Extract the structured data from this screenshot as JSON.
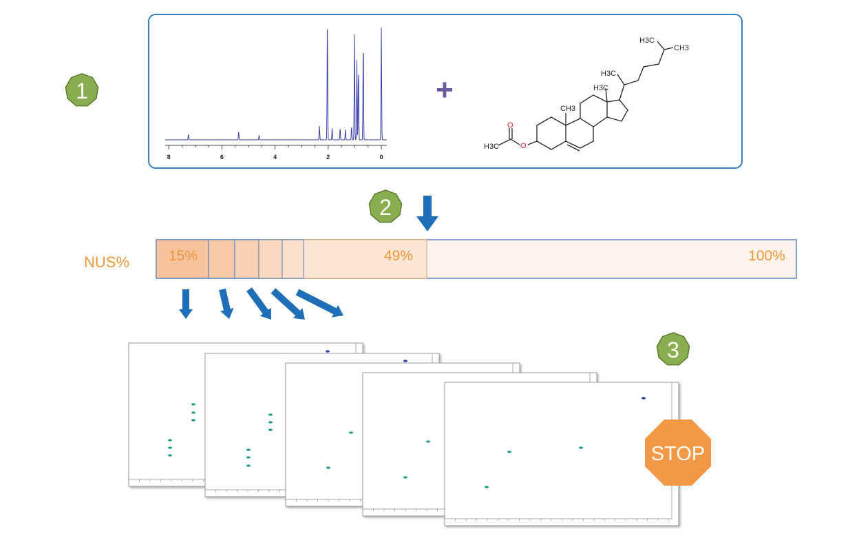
{
  "steps": {
    "one": "1",
    "two": "2",
    "three": "3"
  },
  "plus_symbol": "+",
  "spectrum_1h": {
    "x_ticks": [
      "8",
      "6",
      "4",
      "2",
      "0"
    ],
    "peaks": [
      {
        "ppm": 7.26,
        "intensity": 0.05
      },
      {
        "ppm": 5.37,
        "intensity": 0.07
      },
      {
        "ppm": 4.6,
        "intensity": 0.04
      },
      {
        "ppm": 2.33,
        "intensity": 0.12
      },
      {
        "ppm": 2.03,
        "intensity": 1.0
      },
      {
        "ppm": 1.85,
        "intensity": 0.1
      },
      {
        "ppm": 1.55,
        "intensity": 0.1
      },
      {
        "ppm": 1.35,
        "intensity": 0.09
      },
      {
        "ppm": 1.12,
        "intensity": 0.12
      },
      {
        "ppm": 1.01,
        "intensity": 0.9
      },
      {
        "ppm": 0.92,
        "intensity": 0.68
      },
      {
        "ppm": 0.86,
        "intensity": 0.62
      },
      {
        "ppm": 0.68,
        "intensity": 0.88
      },
      {
        "ppm": 0.0,
        "intensity": 0.96
      }
    ]
  },
  "molecule": {
    "labels": {
      "ch3_c10": "CH3",
      "h3c_c13": "H3C",
      "h3c_c20": "H3C",
      "h3c_c25": "H3C",
      "ch3_c25": "CH3",
      "carbonyl_o": "O",
      "ester_o": "O",
      "acetyl_h3c": "H3C"
    }
  },
  "nus": {
    "label": "NUS%",
    "markers": {
      "low": "15%",
      "stop": "49%",
      "full": "100%"
    }
  },
  "stop_sign": {
    "label": "STOP"
  },
  "colors": {
    "badge_green": "#8aad4f",
    "arrow_blue": "#1f6fb8",
    "nus_orange": "#f0963a",
    "spectrum_blue": "#3a3fa8",
    "stop_orange": "#f39845",
    "frame_blue": "#3a7cc0"
  }
}
